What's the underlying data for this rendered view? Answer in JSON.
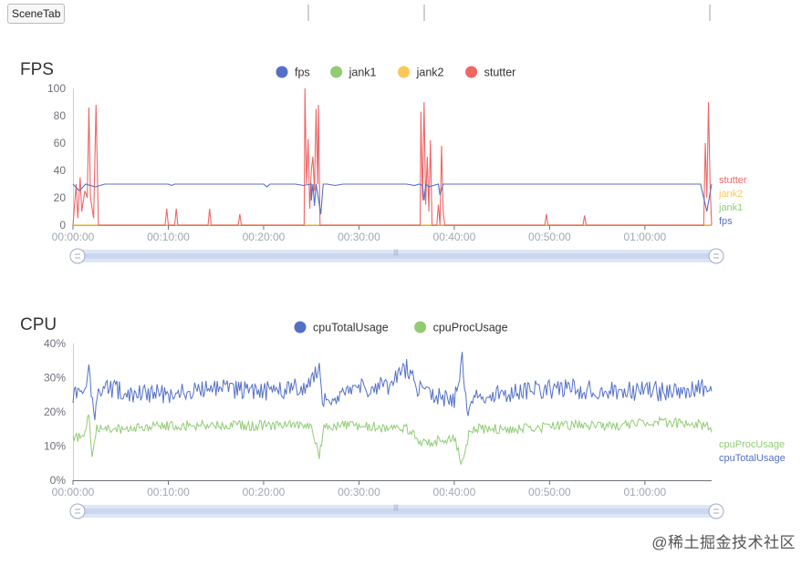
{
  "tabbar": {
    "scene_tab_label": "SceneTab"
  },
  "watermark": "@稀土掘金技术社区",
  "colors": {
    "fps": "#5470c6",
    "jank1": "#91cc75",
    "jank2": "#fac858",
    "stutter": "#ee6666",
    "axis": "#6e7079",
    "grid": "#e0e6f1",
    "zoom": "#dde6f5"
  },
  "chart_data": [
    {
      "id": "fps",
      "type": "line",
      "title": "FPS",
      "legend": [
        "fps",
        "jank1",
        "jank2",
        "stutter"
      ],
      "legend_position": "top-center",
      "end_labels": [
        "stutter",
        "jank2",
        "jank1",
        "fps"
      ],
      "y_ticks": [
        "0",
        "20",
        "40",
        "60",
        "80",
        "100"
      ],
      "ylim": [
        0,
        100
      ],
      "x_ticks": [
        "00:00:00",
        "00:10:00",
        "00:20:00",
        "00:30:00",
        "00:40:00",
        "00:50:00",
        "01:00:00"
      ],
      "x_unit": "seconds",
      "xlim": [
        0,
        4020
      ],
      "series": [
        {
          "name": "fps",
          "baseline": 30,
          "points": [
            [
              0,
              30
            ],
            [
              40,
              25
            ],
            [
              80,
              30
            ],
            [
              140,
              28
            ],
            [
              200,
              30
            ],
            [
              300,
              30
            ],
            [
              600,
              30
            ],
            [
              620,
              29
            ],
            [
              640,
              30
            ],
            [
              1000,
              30
            ],
            [
              1200,
              30
            ],
            [
              1220,
              28
            ],
            [
              1240,
              30
            ],
            [
              1400,
              30
            ],
            [
              1450,
              29
            ],
            [
              1500,
              30
            ],
            [
              1500,
              18
            ],
            [
              1510,
              30
            ],
            [
              1520,
              14
            ],
            [
              1530,
              30
            ],
            [
              1560,
              8
            ],
            [
              1575,
              30
            ],
            [
              1600,
              30
            ],
            [
              1650,
              29
            ],
            [
              1700,
              30
            ],
            [
              2000,
              30
            ],
            [
              2100,
              30
            ],
            [
              2150,
              29
            ],
            [
              2180,
              30
            ],
            [
              2200,
              29
            ],
            [
              2210,
              18
            ],
            [
              2220,
              30
            ],
            [
              2240,
              28
            ],
            [
              2300,
              30
            ],
            [
              2310,
              22
            ],
            [
              2330,
              30
            ],
            [
              2400,
              30
            ],
            [
              2800,
              30
            ],
            [
              3000,
              30
            ],
            [
              3200,
              30
            ],
            [
              3400,
              30
            ],
            [
              3600,
              30
            ],
            [
              3800,
              30
            ],
            [
              3950,
              30
            ],
            [
              3990,
              10
            ],
            [
              4020,
              30
            ]
          ]
        },
        {
          "name": "jank1",
          "baseline": 0,
          "points": [
            [
              0,
              0
            ],
            [
              4020,
              0
            ]
          ]
        },
        {
          "name": "jank2",
          "baseline": 0,
          "points": [
            [
              0,
              0
            ],
            [
              4020,
              0
            ]
          ]
        },
        {
          "name": "stutter",
          "baseline": 0,
          "points": [
            [
              0,
              0
            ],
            [
              20,
              30
            ],
            [
              30,
              5
            ],
            [
              45,
              35
            ],
            [
              55,
              10
            ],
            [
              75,
              25
            ],
            [
              90,
              20
            ],
            [
              100,
              86
            ],
            [
              110,
              20
            ],
            [
              130,
              5
            ],
            [
              145,
              88
            ],
            [
              160,
              0
            ],
            [
              580,
              0
            ],
            [
              590,
              12
            ],
            [
              600,
              0
            ],
            [
              640,
              0
            ],
            [
              650,
              12
            ],
            [
              660,
              0
            ],
            [
              850,
              0
            ],
            [
              860,
              12
            ],
            [
              870,
              0
            ],
            [
              1040,
              0
            ],
            [
              1050,
              8
            ],
            [
              1060,
              0
            ],
            [
              1455,
              0
            ],
            [
              1460,
              100
            ],
            [
              1470,
              30
            ],
            [
              1480,
              63
            ],
            [
              1490,
              12
            ],
            [
              1500,
              40
            ],
            [
              1510,
              50
            ],
            [
              1520,
              25
            ],
            [
              1530,
              85
            ],
            [
              1540,
              30
            ],
            [
              1545,
              88
            ],
            [
              1555,
              0
            ],
            [
              2185,
              0
            ],
            [
              2190,
              83
            ],
            [
              2200,
              18
            ],
            [
              2210,
              90
            ],
            [
              2220,
              15
            ],
            [
              2230,
              50
            ],
            [
              2240,
              10
            ],
            [
              2250,
              62
            ],
            [
              2260,
              0
            ],
            [
              2290,
              0
            ],
            [
              2300,
              15
            ],
            [
              2310,
              0
            ],
            [
              2320,
              58
            ],
            [
              2330,
              10
            ],
            [
              2340,
              0
            ],
            [
              2970,
              0
            ],
            [
              2980,
              8
            ],
            [
              2990,
              0
            ],
            [
              3210,
              0
            ],
            [
              3220,
              7
            ],
            [
              3230,
              0
            ],
            [
              3970,
              0
            ],
            [
              3980,
              60
            ],
            [
              3990,
              20
            ],
            [
              4000,
              90
            ],
            [
              4010,
              30
            ],
            [
              4020,
              0
            ]
          ]
        }
      ]
    },
    {
      "id": "cpu",
      "type": "line",
      "title": "CPU",
      "legend": [
        "cpuTotalUsage",
        "cpuProcUsage"
      ],
      "legend_position": "top-center",
      "end_labels": [
        "cpuProcUsage",
        "cpuTotalUsage"
      ],
      "y_ticks": [
        "0%",
        "10%",
        "20%",
        "30%",
        "40%"
      ],
      "ylim": [
        0,
        40
      ],
      "x_ticks": [
        "00:00:00",
        "00:10:00",
        "00:20:00",
        "00:30:00",
        "00:40:00",
        "00:50:00",
        "01:00:00"
      ],
      "x_unit": "seconds",
      "xlim": [
        0,
        4020
      ],
      "series": [
        {
          "name": "cpuTotalUsage",
          "points": [
            [
              0,
              24
            ],
            [
              60,
              26
            ],
            [
              100,
              33
            ],
            [
              130,
              18
            ],
            [
              160,
              27
            ],
            [
              300,
              26
            ],
            [
              600,
              25
            ],
            [
              900,
              27
            ],
            [
              1200,
              26
            ],
            [
              1500,
              28
            ],
            [
              1550,
              35
            ],
            [
              1570,
              24
            ],
            [
              1800,
              27
            ],
            [
              2000,
              28
            ],
            [
              2100,
              33
            ],
            [
              2200,
              25
            ],
            [
              2400,
              24
            ],
            [
              2450,
              35
            ],
            [
              2480,
              20
            ],
            [
              2500,
              25
            ],
            [
              2800,
              26
            ],
            [
              3100,
              27
            ],
            [
              3400,
              26
            ],
            [
              3700,
              26
            ],
            [
              4000,
              27
            ],
            [
              4020,
              26
            ]
          ]
        },
        {
          "name": "cpuProcUsage",
          "points": [
            [
              0,
              13
            ],
            [
              60,
              12
            ],
            [
              100,
              19
            ],
            [
              120,
              7
            ],
            [
              150,
              15
            ],
            [
              300,
              15
            ],
            [
              600,
              16
            ],
            [
              900,
              16
            ],
            [
              1200,
              16
            ],
            [
              1500,
              16
            ],
            [
              1550,
              7
            ],
            [
              1580,
              16
            ],
            [
              1800,
              16
            ],
            [
              2100,
              15
            ],
            [
              2200,
              11
            ],
            [
              2400,
              12
            ],
            [
              2450,
              5
            ],
            [
              2500,
              15
            ],
            [
              2800,
              15
            ],
            [
              3100,
              16
            ],
            [
              3400,
              16
            ],
            [
              3700,
              17
            ],
            [
              4000,
              16
            ],
            [
              4020,
              14
            ]
          ]
        }
      ]
    }
  ]
}
